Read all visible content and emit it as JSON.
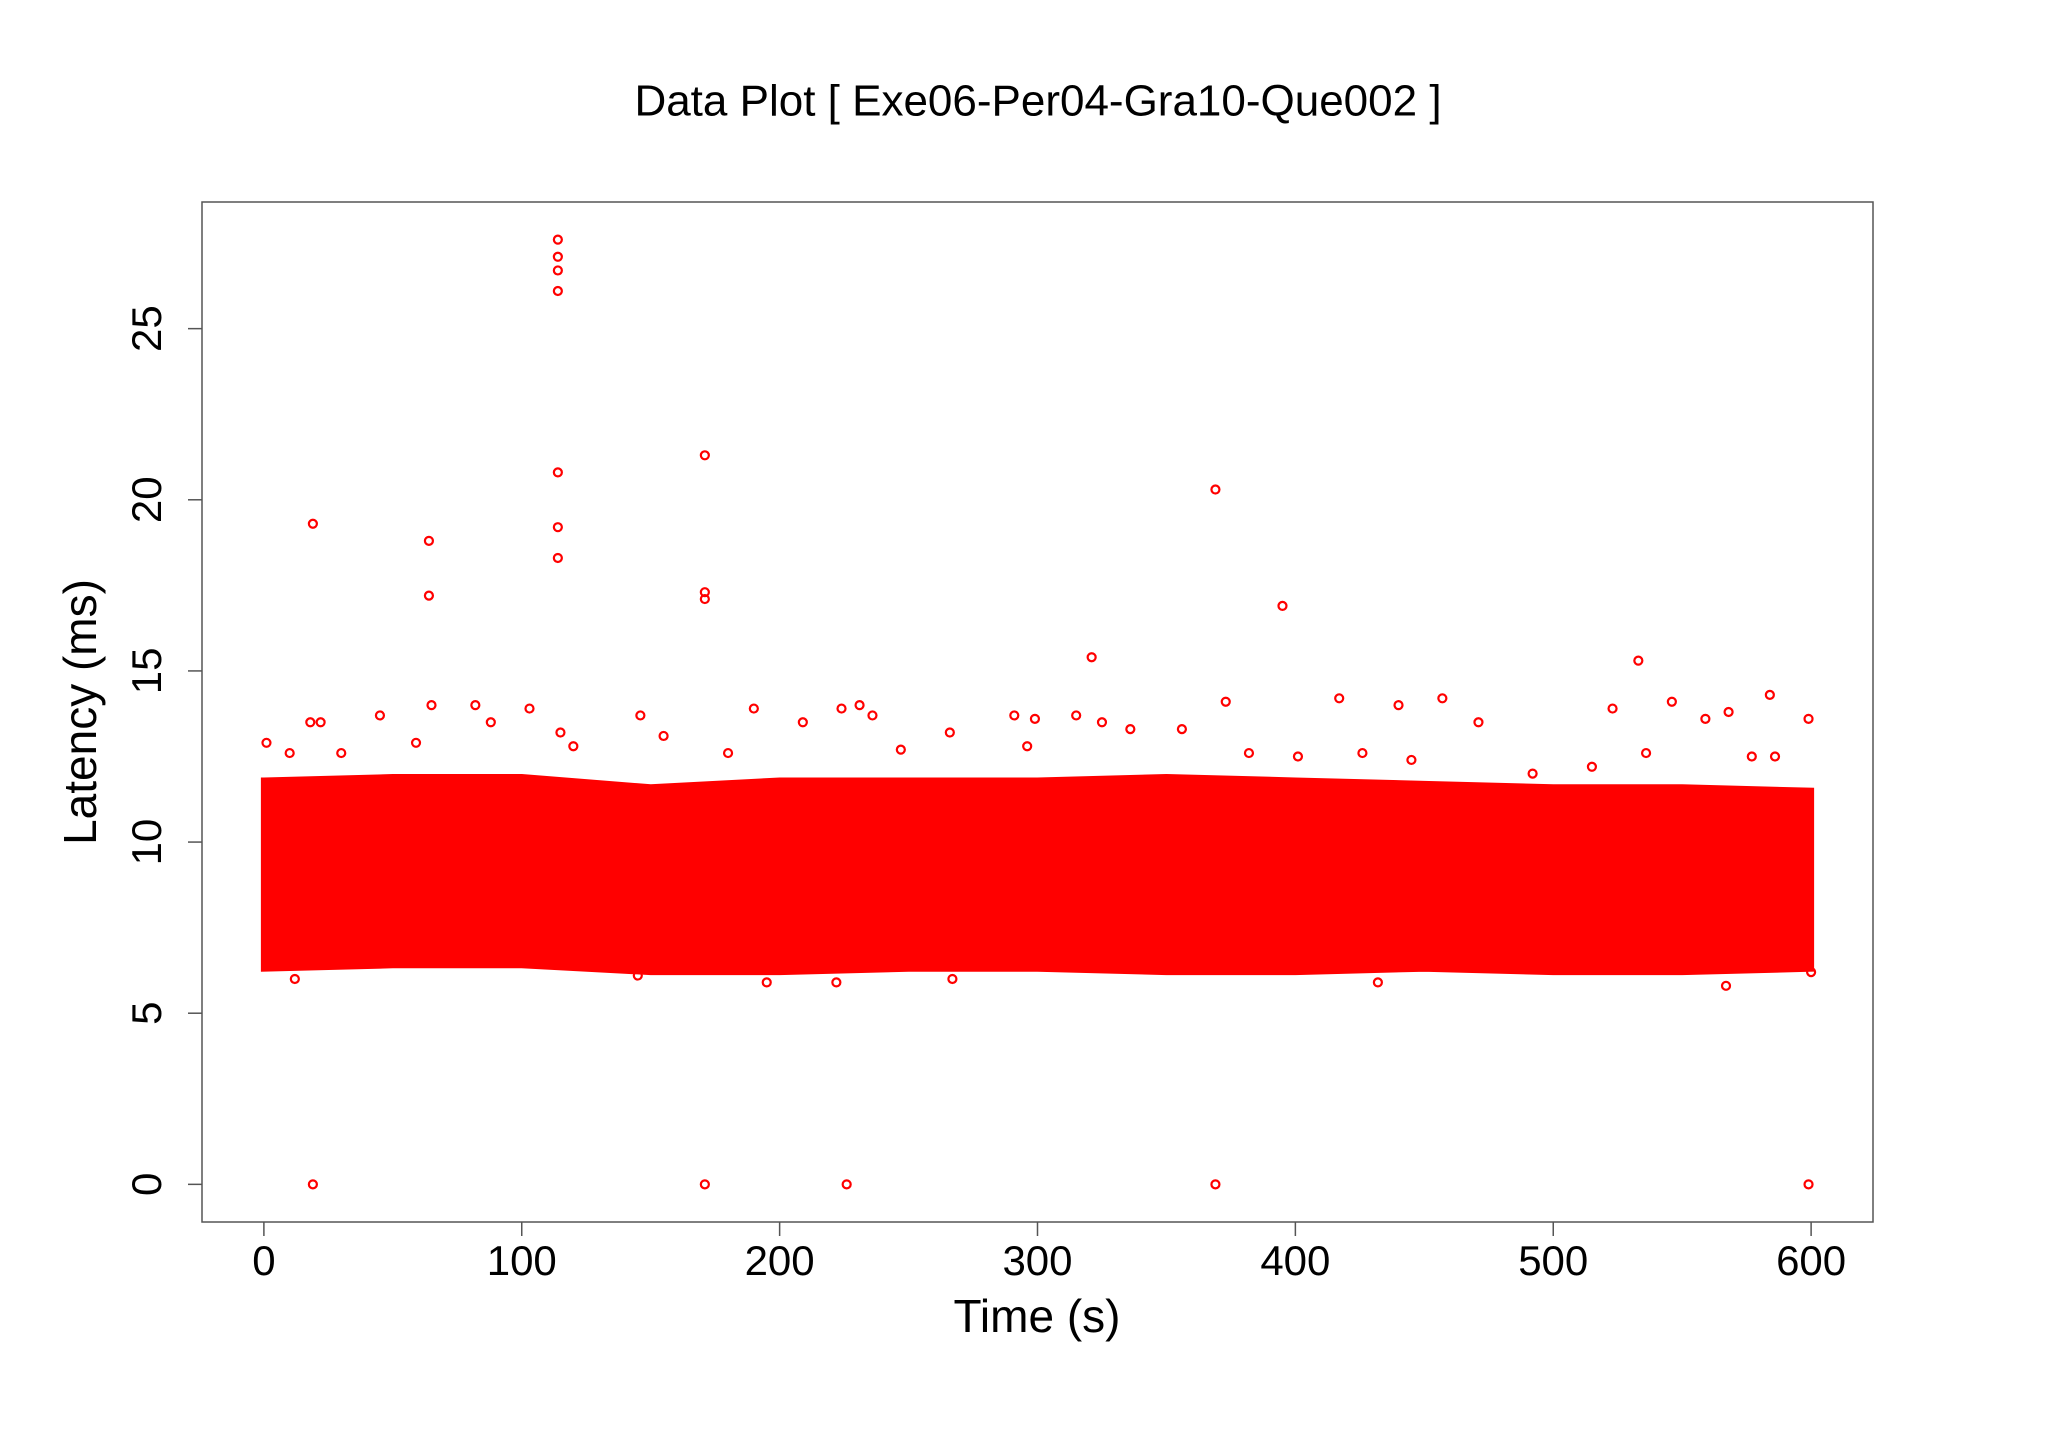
{
  "chart_data": {
    "type": "scatter",
    "title": "Data Plot [ Exe06-Per04-Gra10-Que002 ]",
    "x_label": "Time (s)",
    "y_label": "Latency (ms)",
    "xlim": [
      -24,
      624
    ],
    "ylim": [
      -1.1,
      28.7
    ],
    "xticks": [
      0,
      100,
      200,
      300,
      400,
      500,
      600
    ],
    "yticks": [
      0,
      5,
      10,
      15,
      20,
      25
    ],
    "series": [
      {
        "type": "area",
        "color": "#ff0000",
        "x": [
          0,
          50,
          100,
          150,
          200,
          250,
          300,
          350,
          400,
          450,
          500,
          550,
          600
        ],
        "low": [
          6.3,
          6.4,
          6.4,
          6.2,
          6.2,
          6.3,
          6.3,
          6.2,
          6.2,
          6.3,
          6.2,
          6.2,
          6.3
        ],
        "high": [
          11.8,
          11.9,
          11.9,
          11.6,
          11.8,
          11.8,
          11.8,
          11.9,
          11.8,
          11.7,
          11.6,
          11.6,
          11.5
        ]
      },
      {
        "type": "scatter",
        "color": "#ff0000",
        "x": [
          19,
          19,
          64,
          64,
          114,
          114,
          114,
          114,
          114,
          114,
          114,
          171,
          171,
          171,
          171,
          226,
          369,
          369,
          395,
          321,
          533,
          599,
          584,
          546,
          457,
          417,
          373,
          231,
          224,
          236,
          103,
          65,
          82,
          18,
          22,
          45,
          146,
          190,
          299,
          291,
          315,
          325,
          356,
          440,
          471,
          523,
          559,
          568,
          599,
          1,
          10,
          30,
          59,
          88,
          115,
          120,
          155,
          180,
          209,
          247,
          266,
          296,
          336,
          382,
          401,
          426,
          445,
          492,
          515,
          536,
          577,
          586,
          12,
          145,
          195,
          222,
          267,
          432,
          567,
          600
        ],
        "values": [
          19.3,
          0,
          18.8,
          17.2,
          27.6,
          27.1,
          26.7,
          26.1,
          20.8,
          19.2,
          18.3,
          21.3,
          17.3,
          17.1,
          0,
          0,
          20.3,
          0,
          16.9,
          15.4,
          15.3,
          0,
          14.3,
          14.1,
          14.2,
          14.2,
          14.1,
          14.0,
          13.9,
          13.7,
          13.9,
          14.0,
          14.0,
          13.5,
          13.5,
          13.7,
          13.7,
          13.9,
          13.6,
          13.7,
          13.7,
          13.5,
          13.3,
          14.0,
          13.5,
          13.9,
          13.6,
          13.8,
          13.6,
          12.9,
          12.6,
          12.6,
          12.9,
          13.5,
          13.2,
          12.8,
          13.1,
          12.6,
          13.5,
          12.7,
          13.2,
          12.8,
          13.3,
          12.6,
          12.5,
          12.6,
          12.4,
          12.0,
          12.2,
          12.6,
          12.5,
          12.5,
          6.0,
          6.1,
          5.9,
          5.9,
          6.0,
          5.9,
          5.8,
          6.2
        ]
      }
    ]
  }
}
